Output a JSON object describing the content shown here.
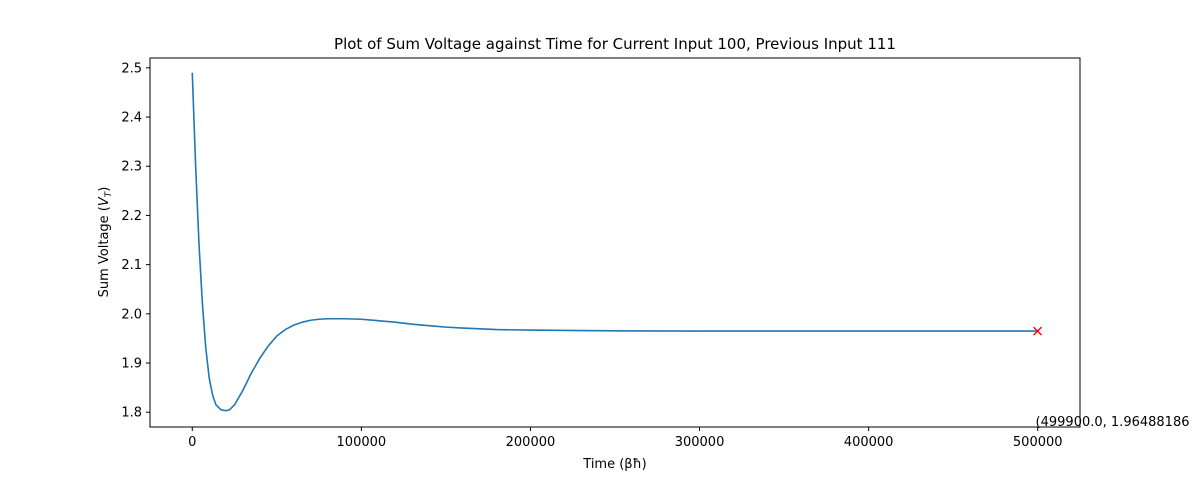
{
  "chart_data": {
    "type": "line",
    "title": "Plot of Sum Voltage against Time for Current Input 100, Previous Input 111",
    "xlabel": "Time (βħ)",
    "ylabel_main": "Sum Voltage (",
    "ylabel_sym": "V",
    "ylabel_sub": "T",
    "ylabel_end": ")",
    "xlim": [
      -25000,
      525000
    ],
    "ylim": [
      1.77,
      2.52
    ],
    "x_ticks": [
      0,
      100000,
      200000,
      300000,
      400000,
      500000
    ],
    "x_tick_labels": [
      "0",
      "100000",
      "200000",
      "300000",
      "400000",
      "500000"
    ],
    "y_ticks": [
      1.8,
      1.9,
      2.0,
      2.1,
      2.2,
      2.3,
      2.4,
      2.5
    ],
    "y_tick_labels": [
      "1.8",
      "1.9",
      "2.0",
      "2.1",
      "2.2",
      "2.3",
      "2.4",
      "2.5"
    ],
    "grid": false,
    "series": [
      {
        "color": "#1f77b4",
        "x": [
          0,
          2000,
          4000,
          6000,
          8000,
          10000,
          12000,
          14000,
          17000,
          20000,
          22000,
          25000,
          30000,
          35000,
          40000,
          45000,
          50000,
          55000,
          60000,
          65000,
          70000,
          75000,
          80000,
          85000,
          90000,
          95000,
          100000,
          110000,
          120000,
          130000,
          140000,
          150000,
          160000,
          180000,
          200000,
          230000,
          260000,
          300000,
          350000,
          400000,
          450000,
          499900
        ],
        "y": [
          2.49,
          2.3,
          2.14,
          2.02,
          1.93,
          1.87,
          1.835,
          1.815,
          1.805,
          1.803,
          1.805,
          1.815,
          1.845,
          1.88,
          1.91,
          1.935,
          1.955,
          1.968,
          1.977,
          1.983,
          1.987,
          1.989,
          1.99,
          1.99,
          1.99,
          1.9895,
          1.989,
          1.986,
          1.983,
          1.979,
          1.976,
          1.973,
          1.971,
          1.968,
          1.967,
          1.966,
          1.9652,
          1.965,
          1.965,
          1.965,
          1.965,
          1.9649
        ]
      }
    ],
    "marker": {
      "x": 499900.0,
      "y": 1.96488186,
      "symbol": "x",
      "color": "#ff0000"
    },
    "annotation": "(499900.0, 1.96488186"
  }
}
